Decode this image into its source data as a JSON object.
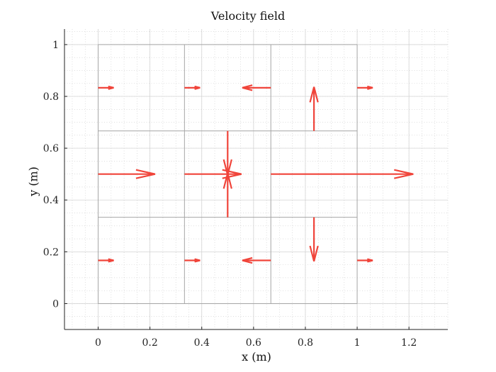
{
  "chart_data": {
    "type": "quiver",
    "title": "Velocity field",
    "xlabel": "x (m)",
    "ylabel": "y (m)",
    "xlim": [
      -0.13,
      1.35
    ],
    "ylim": [
      -0.1,
      1.06
    ],
    "xticks": [
      0,
      0.2,
      0.4,
      0.6,
      0.8,
      1,
      1.2
    ],
    "xtick_labels": [
      "0",
      "0.2",
      "0.4",
      "0.6",
      "0.8",
      "1",
      "1.2"
    ],
    "yticks": [
      0,
      0.2,
      0.4,
      0.6,
      0.8,
      1
    ],
    "ytick_labels": [
      "0",
      "0.2",
      "0.4",
      "0.6",
      "0.8",
      "1"
    ],
    "grid": "major and minor (dotted)",
    "mesh": {
      "x_lines": [
        0,
        0.3333,
        0.6667,
        1
      ],
      "y_lines": [
        0,
        0.3333,
        0.6667,
        1
      ],
      "color": "#a6a6a6"
    },
    "arrow_color": "#f0443a",
    "arrows": [
      {
        "x": 0,
        "y": 0.8333,
        "u": 0.06,
        "v": 0
      },
      {
        "x": 0.3333,
        "y": 0.8333,
        "u": 0.06,
        "v": 0
      },
      {
        "x": 0.6667,
        "y": 0.8333,
        "u": -0.11,
        "v": 0
      },
      {
        "x": 1,
        "y": 0.8333,
        "u": 0.06,
        "v": 0
      },
      {
        "x": 0.8333,
        "y": 0.6667,
        "u": 0,
        "v": 0.17
      },
      {
        "x": 0,
        "y": 0.5,
        "u": 0.22,
        "v": 0
      },
      {
        "x": 0.3333,
        "y": 0.5,
        "u": 0.22,
        "v": 0
      },
      {
        "x": 0.6667,
        "y": 0.5,
        "u": 0.55,
        "v": 0
      },
      {
        "x": 0.5,
        "y": 0.6667,
        "u": 0,
        "v": -0.17
      },
      {
        "x": 0.5,
        "y": 0.3333,
        "u": 0,
        "v": 0.17
      },
      {
        "x": 0.8333,
        "y": 0.3333,
        "u": 0,
        "v": -0.17
      },
      {
        "x": 0,
        "y": 0.1667,
        "u": 0.06,
        "v": 0
      },
      {
        "x": 0.3333,
        "y": 0.1667,
        "u": 0.06,
        "v": 0
      },
      {
        "x": 0.6667,
        "y": 0.1667,
        "u": -0.11,
        "v": 0
      },
      {
        "x": 1,
        "y": 0.1667,
        "u": 0.06,
        "v": 0
      }
    ]
  }
}
